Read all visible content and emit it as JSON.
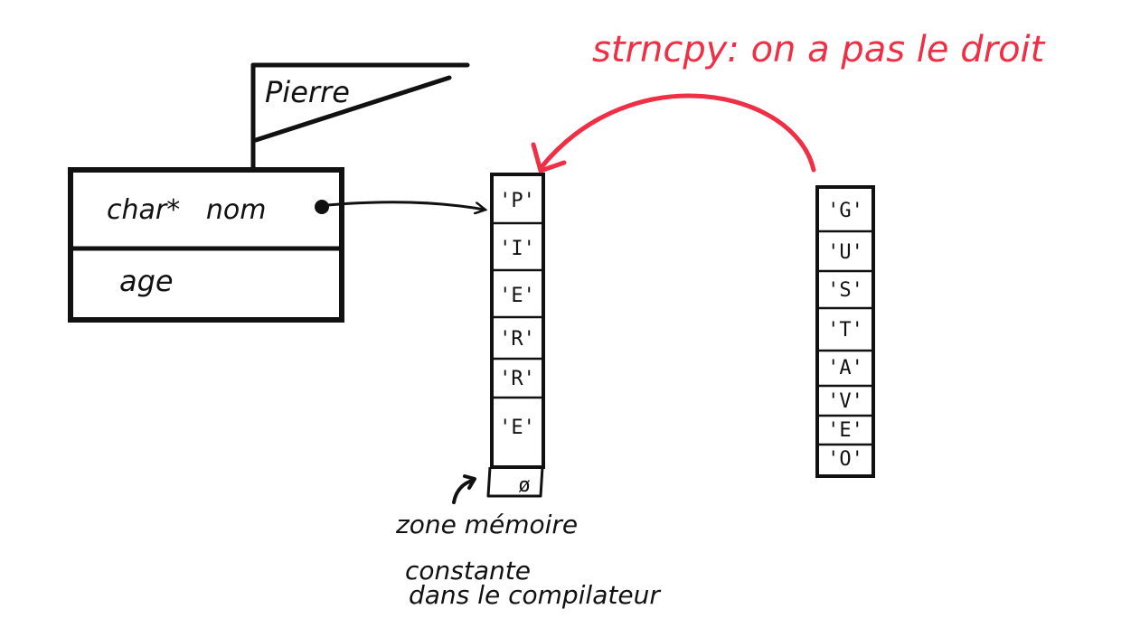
{
  "colors": {
    "ink": "#111111",
    "annotation": "#ef2f45",
    "background": "#ffffff"
  },
  "flag": {
    "label": "Pierre"
  },
  "struct": {
    "field1": "char*   nom",
    "field2": "age"
  },
  "left_array": {
    "cells": [
      "'P'",
      "'I'",
      "'E'",
      "'R'",
      "'R'",
      "'E'"
    ],
    "terminator": "ø"
  },
  "right_array": {
    "cells": [
      "'G'",
      "'U'",
      "'S'",
      "'T'",
      "'A'",
      "'V'",
      "'E'",
      "'O'"
    ]
  },
  "annotation": {
    "text": "strncpy: on a pas le droit"
  },
  "note": {
    "line1": "zone mémoire",
    "line2": "constante",
    "line3": "dans le compilateur"
  }
}
